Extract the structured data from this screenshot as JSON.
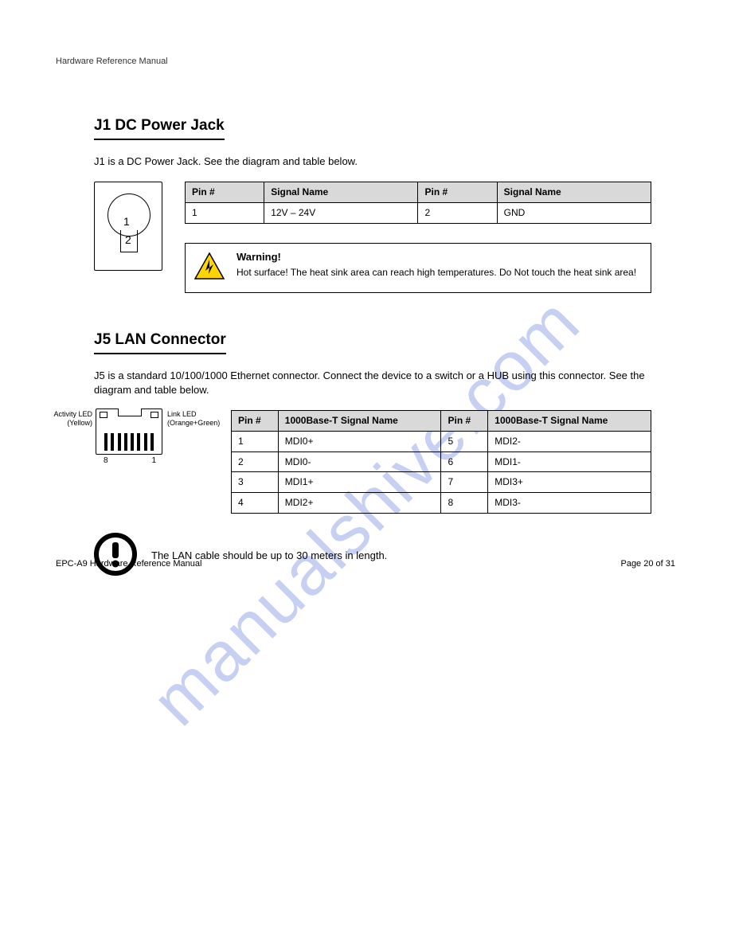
{
  "header": {
    "doc_title": "Hardware Reference Manual"
  },
  "section1": {
    "title": "J1 DC Power Jack",
    "intro": "J1 is a DC Power Jack. See the diagram and table below.",
    "table": {
      "headers": [
        "Pin #",
        "Signal Name",
        "Pin #",
        "Signal Name"
      ],
      "row": [
        "1",
        "12V – 24V",
        "2",
        "GND"
      ]
    },
    "warning": {
      "heading": "Warning!",
      "body": "Hot surface! The heat sink area can reach high temperatures. Do Not touch the heat sink area!"
    }
  },
  "section2": {
    "title": "J5 LAN Connector",
    "intro": "J5 is a standard 10/100/1000 Ethernet connector. Connect the device to a switch or a HUB using this connector. See the diagram and table below.",
    "diagram": {
      "left_label_line1": "Activity LED",
      "left_label_line2": "(Yellow)",
      "right_label_line1": "Link LED",
      "right_label_line2": "(Orange+Green)",
      "pin_left": "8",
      "pin_right": "1"
    },
    "table": {
      "headers": [
        "Pin #",
        "1000Base-T Signal Name",
        "Pin #",
        "1000Base-T Signal Name"
      ],
      "rows": [
        [
          "1",
          "MDI0+",
          "5",
          "MDI2-"
        ],
        [
          "2",
          "MDI0-",
          "6",
          "MDI1-"
        ],
        [
          "3",
          "MDI1+",
          "7",
          "MDI3+"
        ],
        [
          "4",
          "MDI2+",
          "8",
          "MDI3-"
        ]
      ]
    },
    "note": "The LAN cable should be up to 30 meters in length."
  },
  "footer": {
    "left": "EPC-A9 Hardware Reference Manual",
    "right": "Page 20 of 31"
  },
  "colors": {
    "table_header_bg": "#d9d9d9",
    "warn_triangle_fill": "#ffd400",
    "watermark": "rgba(90,120,220,0.35)"
  }
}
